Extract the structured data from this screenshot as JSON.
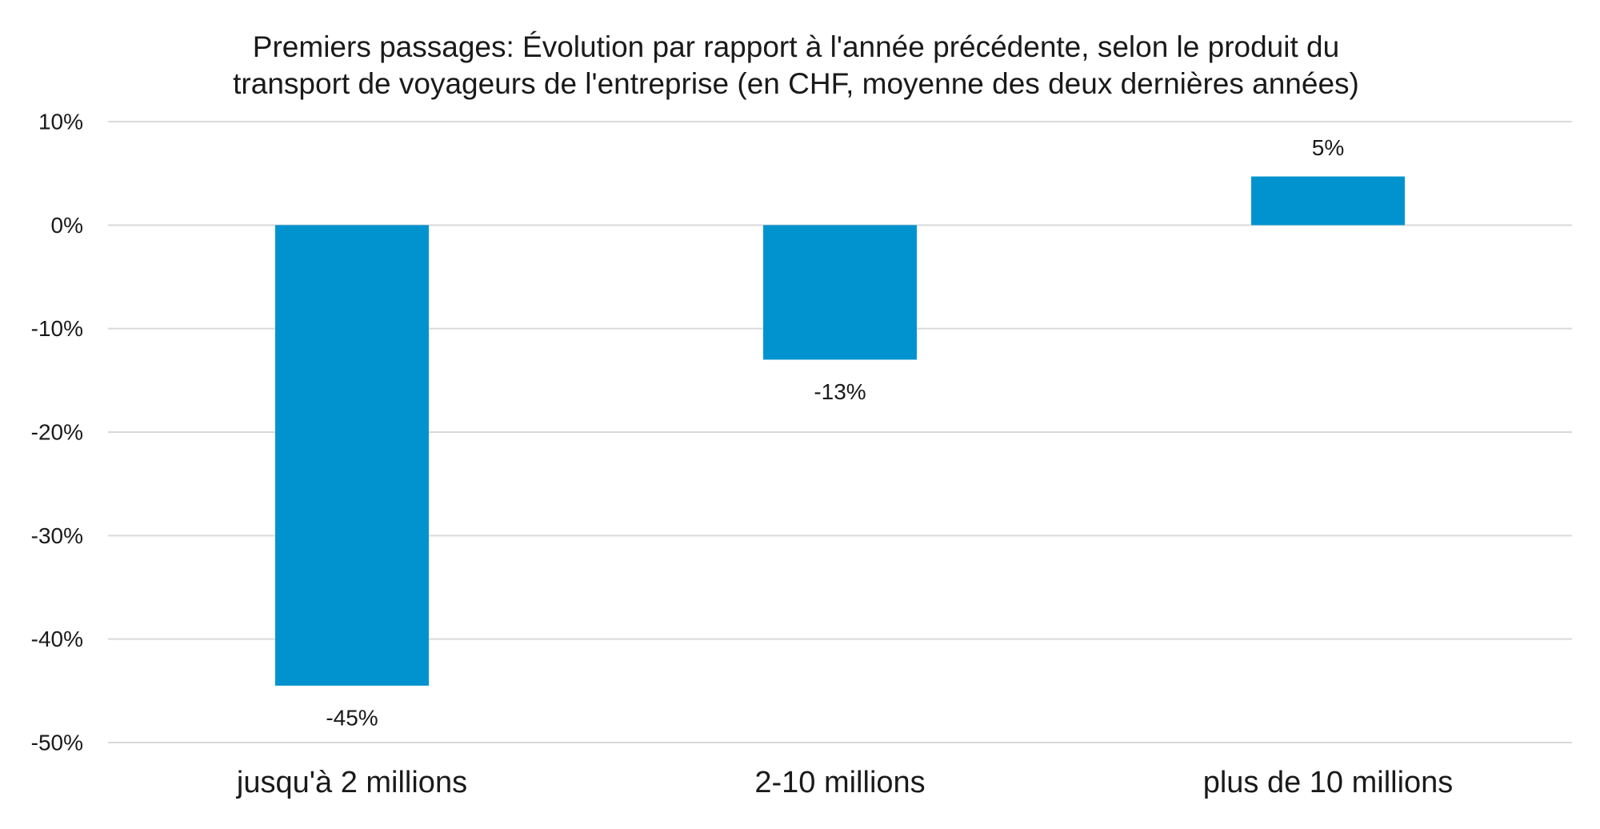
{
  "chart_data": {
    "type": "bar",
    "title_lines": [
      "Premiers passages: Évolution par rapport à l'année précédente, selon le produit du",
      "transport de voyageurs de l'entreprise (en CHF, moyenne des deux dernières années)"
    ],
    "categories": [
      "jusqu'à 2 millions",
      "2-10 millions",
      "plus de 10 millions"
    ],
    "values": [
      -44.5,
      -13,
      4.7
    ],
    "data_labels": [
      "-45%",
      "-13%",
      "5%"
    ],
    "y_ticks": [
      10,
      0,
      -10,
      -20,
      -30,
      -40,
      -50
    ],
    "y_tick_labels": [
      "10%",
      "0%",
      "-10%",
      "-20%",
      "-30%",
      "-40%",
      "-50%"
    ],
    "ylim": [
      -50,
      10
    ],
    "grid": true,
    "legend": "none",
    "bar_color": "#0093d0",
    "grid_color": "#d9d9d9"
  }
}
